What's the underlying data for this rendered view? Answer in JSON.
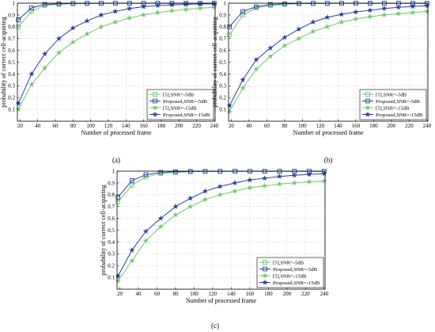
{
  "figure": {
    "panel_labels": [
      "(a)",
      "(b)",
      "(c)"
    ]
  },
  "colors": {
    "green": "#6ec96e",
    "blue": "#2a3fa8",
    "grid": "#d8d8d8"
  },
  "chart_data": [
    {
      "type": "line",
      "panel": "(a)",
      "xlabel": "Number of processed frame",
      "ylabel": "probability of correct cell-acquiring",
      "xlim": [
        17,
        241
      ],
      "ylim": [
        0,
        1
      ],
      "xticks": [
        20,
        40,
        60,
        80,
        100,
        120,
        140,
        160,
        180,
        200,
        220,
        240
      ],
      "yticks": [
        0.1,
        0.2,
        0.3,
        0.4,
        0.5,
        0.6,
        0.7,
        0.8,
        0.9,
        1
      ],
      "grid": true,
      "legend_position": "bottom-right",
      "series": [
        {
          "name": "[5],SNR=-5dB",
          "color": "#6ec96e",
          "marker": "square",
          "x": [
            18,
            33,
            48,
            64,
            80,
            96,
            112,
            128,
            144,
            160,
            176,
            192,
            208,
            224,
            240
          ],
          "y": [
            0.8,
            0.93,
            0.98,
            0.99,
            0.995,
            0.997,
            0.998,
            0.999,
            0.999,
            0.999,
            0.999,
            0.999,
            0.999,
            0.999,
            0.999
          ]
        },
        {
          "name": "Proposed,SNR=-5dB",
          "color": "#2a3fa8",
          "marker": "square",
          "x": [
            18,
            33,
            48,
            64,
            80,
            96,
            112,
            128,
            144,
            160,
            176,
            192,
            208,
            224,
            240
          ],
          "y": [
            0.86,
            0.96,
            0.99,
            0.995,
            0.998,
            0.999,
            0.999,
            0.999,
            0.999,
            0.999,
            0.999,
            0.999,
            0.999,
            0.999,
            0.999
          ]
        },
        {
          "name": "[5],SNR=-15dB",
          "color": "#6ec96e",
          "marker": "star",
          "x": [
            18,
            33,
            48,
            64,
            80,
            96,
            112,
            128,
            144,
            160,
            176,
            192,
            208,
            224,
            240
          ],
          "y": [
            0.1,
            0.31,
            0.45,
            0.58,
            0.67,
            0.74,
            0.8,
            0.84,
            0.875,
            0.9,
            0.92,
            0.935,
            0.947,
            0.957,
            0.965
          ]
        },
        {
          "name": "Proposed,SNR=-15dB",
          "color": "#2a3fa8",
          "marker": "star",
          "x": [
            18,
            33,
            48,
            64,
            80,
            96,
            112,
            128,
            144,
            160,
            176,
            192,
            208,
            224,
            240
          ],
          "y": [
            0.15,
            0.4,
            0.57,
            0.7,
            0.79,
            0.85,
            0.9,
            0.93,
            0.955,
            0.97,
            0.98,
            0.985,
            0.99,
            0.993,
            0.995
          ]
        }
      ]
    },
    {
      "type": "line",
      "panel": "(b)",
      "xlabel": "Number of processed frame",
      "ylabel": "probability of correct cell-acquiring",
      "xlim": [
        17,
        241
      ],
      "ylim": [
        0,
        1
      ],
      "xticks": [
        20,
        40,
        60,
        80,
        100,
        120,
        140,
        160,
        180,
        200,
        220,
        240
      ],
      "yticks": [
        0.1,
        0.2,
        0.3,
        0.4,
        0.5,
        0.6,
        0.7,
        0.8,
        0.9,
        1
      ],
      "grid": true,
      "legend_position": "bottom-right",
      "series": [
        {
          "name": "[5],SNR=-5dB",
          "color": "#6ec96e",
          "marker": "square",
          "x": [
            18,
            33,
            48,
            64,
            80,
            96,
            112,
            128,
            144,
            160,
            176,
            192,
            208,
            224,
            240
          ],
          "y": [
            0.73,
            0.9,
            0.96,
            0.98,
            0.99,
            0.995,
            0.997,
            0.998,
            0.999,
            0.999,
            0.999,
            0.999,
            0.999,
            0.999,
            0.999
          ]
        },
        {
          "name": "Proposed,SNR=-5dB",
          "color": "#2a3fa8",
          "marker": "square",
          "x": [
            18,
            33,
            48,
            64,
            80,
            96,
            112,
            128,
            144,
            160,
            176,
            192,
            208,
            224,
            240
          ],
          "y": [
            0.8,
            0.93,
            0.97,
            0.99,
            0.995,
            0.998,
            0.999,
            0.999,
            0.999,
            0.999,
            0.999,
            0.999,
            0.999,
            0.999,
            0.999
          ]
        },
        {
          "name": "[5],SNR=-15dB",
          "color": "#6ec96e",
          "marker": "star",
          "x": [
            18,
            33,
            48,
            64,
            80,
            96,
            112,
            128,
            144,
            160,
            176,
            192,
            208,
            224,
            240
          ],
          "y": [
            0.08,
            0.28,
            0.44,
            0.55,
            0.64,
            0.7,
            0.76,
            0.8,
            0.84,
            0.865,
            0.885,
            0.9,
            0.91,
            0.92,
            0.93
          ]
        },
        {
          "name": "Proposed,SNR=-15dB",
          "color": "#2a3fa8",
          "marker": "star",
          "x": [
            18,
            33,
            48,
            64,
            80,
            96,
            112,
            128,
            144,
            160,
            176,
            192,
            208,
            224,
            240
          ],
          "y": [
            0.13,
            0.35,
            0.52,
            0.62,
            0.71,
            0.78,
            0.84,
            0.88,
            0.905,
            0.925,
            0.94,
            0.955,
            0.965,
            0.972,
            0.978
          ]
        }
      ]
    },
    {
      "type": "line",
      "panel": "(c)",
      "xlabel": "Number of processed frame",
      "ylabel": "probability of correct cell-acquiring",
      "xlim": [
        17,
        241
      ],
      "ylim": [
        0,
        1
      ],
      "xticks": [
        20,
        40,
        60,
        80,
        100,
        120,
        140,
        160,
        180,
        200,
        220,
        240
      ],
      "yticks": [
        0.1,
        0.2,
        0.3,
        0.4,
        0.5,
        0.6,
        0.7,
        0.8,
        0.9,
        1
      ],
      "grid": true,
      "legend_position": "bottom-right",
      "series": [
        {
          "name": "[5],SNR=-5dB",
          "color": "#6ec96e",
          "marker": "square",
          "x": [
            18,
            33,
            48,
            64,
            80,
            96,
            112,
            128,
            144,
            160,
            176,
            192,
            208,
            224,
            240
          ],
          "y": [
            0.74,
            0.88,
            0.95,
            0.98,
            0.99,
            0.995,
            0.997,
            0.998,
            0.999,
            0.999,
            0.999,
            0.999,
            0.999,
            0.999,
            0.999
          ]
        },
        {
          "name": "Proposed,SNR=-5dB",
          "color": "#2a3fa8",
          "marker": "square",
          "x": [
            18,
            33,
            48,
            64,
            80,
            96,
            112,
            128,
            144,
            160,
            176,
            192,
            208,
            224,
            240
          ],
          "y": [
            0.78,
            0.92,
            0.97,
            0.99,
            0.995,
            0.998,
            0.999,
            0.999,
            0.999,
            0.999,
            0.999,
            0.999,
            0.999,
            0.999,
            0.999
          ]
        },
        {
          "name": "[5],SNR=-15dB",
          "color": "#6ec96e",
          "marker": "star",
          "x": [
            18,
            33,
            48,
            64,
            80,
            96,
            112,
            128,
            144,
            160,
            176,
            192,
            208,
            224,
            240
          ],
          "y": [
            0.07,
            0.24,
            0.41,
            0.53,
            0.63,
            0.7,
            0.76,
            0.8,
            0.83,
            0.86,
            0.875,
            0.89,
            0.9,
            0.91,
            0.915
          ]
        },
        {
          "name": "Proposed,SNR=-15dB",
          "color": "#2a3fa8",
          "marker": "star",
          "x": [
            18,
            33,
            48,
            64,
            80,
            96,
            112,
            128,
            144,
            160,
            176,
            192,
            208,
            224,
            240
          ],
          "y": [
            0.11,
            0.33,
            0.49,
            0.6,
            0.7,
            0.77,
            0.83,
            0.87,
            0.9,
            0.925,
            0.94,
            0.955,
            0.965,
            0.972,
            0.978
          ]
        }
      ]
    }
  ]
}
